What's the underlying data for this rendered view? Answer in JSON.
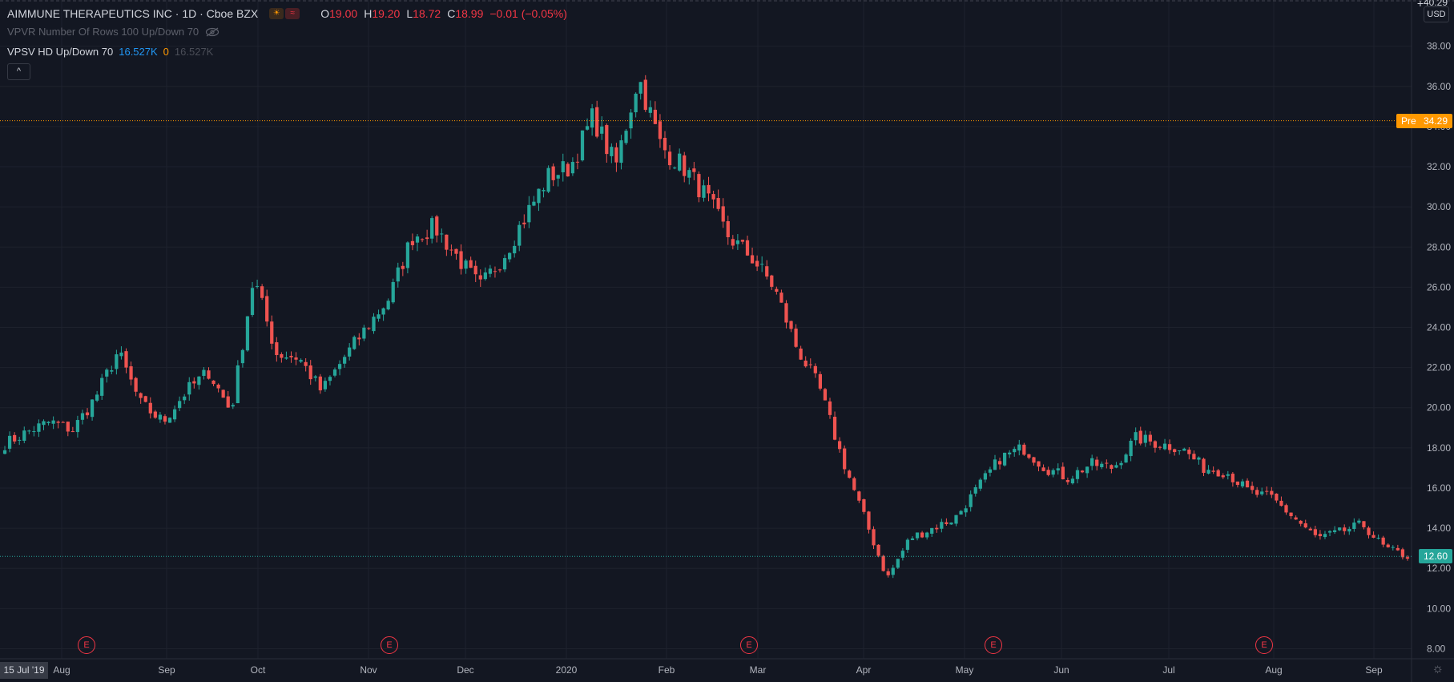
{
  "header": {
    "title": "AIMMUNE THERAPEUTICS INC · 1D · Cboe BZX",
    "ohlc": [
      {
        "k": "O",
        "v": "19.00"
      },
      {
        "k": "H",
        "v": "19.20"
      },
      {
        "k": "L",
        "v": "18.72"
      },
      {
        "k": "C",
        "v": "18.99"
      },
      {
        "k": "",
        "v": "−0.01 (−0.05%)"
      }
    ],
    "indicator_1": "VPVR Number Of Rows 100 Up/Down 70",
    "indicator_2": {
      "name": "VPSV HD Up/Down 70",
      "v1": "16.527K",
      "v2": "0",
      "v3": "16.527K"
    },
    "collapse_label": "^"
  },
  "axis": {
    "currency": "USD",
    "top_partial_label": "40.29",
    "start_date_label": "15 Jul '19",
    "earnings_marker": "E"
  },
  "price_tags": {
    "pre": {
      "label": "Pre",
      "value": "34.29",
      "color": "#ff9800"
    },
    "last": {
      "value": "12.60",
      "color": "#26a69a"
    }
  },
  "colors": {
    "up": "#26a69a",
    "down": "#ef5350",
    "background": "#131722",
    "grid": "#1e222d"
  },
  "chart_data": {
    "type": "candlestick",
    "title": "AIMMUNE THERAPEUTICS INC · 1D · Cboe BZX",
    "ylim": [
      7.5,
      40.3
    ],
    "y_ticks": [
      "8.00",
      "10.00",
      "12.00",
      "14.00",
      "16.00",
      "18.00",
      "20.00",
      "22.00",
      "24.00",
      "26.00",
      "28.00",
      "30.00",
      "32.00",
      "34.00",
      "36.00",
      "38.00"
    ],
    "x_ticks": [
      "Aug",
      "Sep",
      "Oct",
      "Nov",
      "Dec",
      "2020",
      "Feb",
      "Mar",
      "Apr",
      "May",
      "Jun",
      "Jul",
      "Aug",
      "Sep"
    ],
    "earnings_months": [
      "Aug",
      "Nov",
      "Mar",
      "May",
      "Aug"
    ],
    "series": [
      {
        "date": "Jul 19",
        "close": 18.2
      },
      {
        "date": "Jul 26",
        "close": 18.8
      },
      {
        "date": "Aug 2",
        "close": 19.3
      },
      {
        "date": "Aug 9",
        "close": 18.9
      },
      {
        "date": "Aug 16",
        "close": 20.5
      },
      {
        "date": "Aug 21",
        "close": 22.8
      },
      {
        "date": "Aug 30",
        "close": 20.2
      },
      {
        "date": "Sep 6",
        "close": 19.3
      },
      {
        "date": "Sep 13",
        "close": 20.8
      },
      {
        "date": "Sep 17",
        "close": 21.8
      },
      {
        "date": "Sep 20",
        "close": 19.8
      },
      {
        "date": "Sep 24",
        "close": 26.5
      },
      {
        "date": "Sep 27",
        "close": 22.7
      },
      {
        "date": "Oct 4",
        "close": 22.5
      },
      {
        "date": "Oct 11",
        "close": 20.8
      },
      {
        "date": "Oct 18",
        "close": 22.5
      },
      {
        "date": "Oct 25",
        "close": 24.0
      },
      {
        "date": "Nov 1",
        "close": 25.5
      },
      {
        "date": "Nov 8",
        "close": 28.5
      },
      {
        "date": "Nov 15",
        "close": 29.0
      },
      {
        "date": "Nov 22",
        "close": 27.5
      },
      {
        "date": "Nov 29",
        "close": 26.0
      },
      {
        "date": "Dec 6",
        "close": 27.5
      },
      {
        "date": "Dec 13",
        "close": 29.5
      },
      {
        "date": "Dec 20",
        "close": 31.5
      },
      {
        "date": "Dec 27",
        "close": 32.0
      },
      {
        "date": "Jan 3",
        "close": 34.5
      },
      {
        "date": "Jan 10",
        "close": 32.0
      },
      {
        "date": "Jan 14",
        "close": 36.5
      },
      {
        "date": "Jan 17",
        "close": 33.0
      },
      {
        "date": "Jan 24",
        "close": 32.0
      },
      {
        "date": "Jan 31",
        "close": 30.5
      },
      {
        "date": "Feb 7",
        "close": 28.5
      },
      {
        "date": "Feb 14",
        "close": 27.5
      },
      {
        "date": "Feb 21",
        "close": 26.0
      },
      {
        "date": "Feb 28",
        "close": 23.0
      },
      {
        "date": "Mar 6",
        "close": 21.0
      },
      {
        "date": "Mar 13",
        "close": 17.5
      },
      {
        "date": "Mar 16",
        "close": 14.5
      },
      {
        "date": "Mar 20",
        "close": 11.5
      },
      {
        "date": "Mar 27",
        "close": 13.5
      },
      {
        "date": "Apr 3",
        "close": 14.0
      },
      {
        "date": "Apr 10",
        "close": 14.5
      },
      {
        "date": "Apr 17",
        "close": 16.0
      },
      {
        "date": "Apr 24",
        "close": 17.5
      },
      {
        "date": "May 1",
        "close": 18.0
      },
      {
        "date": "May 8",
        "close": 17.0
      },
      {
        "date": "May 15",
        "close": 16.5
      },
      {
        "date": "May 22",
        "close": 17.2
      },
      {
        "date": "May 29",
        "close": 17.0
      },
      {
        "date": "Jun 5",
        "close": 18.5
      },
      {
        "date": "Jun 12",
        "close": 18.2
      },
      {
        "date": "Jun 19",
        "close": 18.0
      },
      {
        "date": "Jun 26",
        "close": 17.0
      },
      {
        "date": "Jul 3",
        "close": 16.8
      },
      {
        "date": "Jul 10",
        "close": 15.8
      },
      {
        "date": "Jul 17",
        "close": 15.5
      },
      {
        "date": "Jul 24",
        "close": 14.5
      },
      {
        "date": "Jul 31",
        "close": 13.5
      },
      {
        "date": "Aug 7",
        "close": 13.8
      },
      {
        "date": "Aug 14",
        "close": 14.2
      },
      {
        "date": "Aug 21",
        "close": 13.0
      },
      {
        "date": "Aug 28",
        "close": 12.6
      }
    ]
  }
}
